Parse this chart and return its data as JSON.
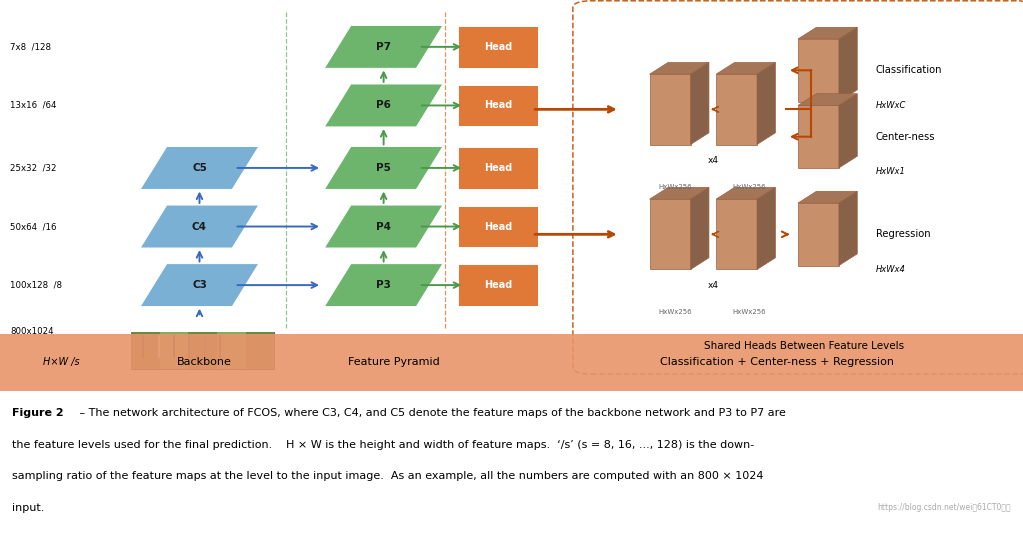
{
  "fig_width": 10.23,
  "fig_height": 5.35,
  "bg_color": "#ffffff",
  "bottom_bar_color": "#e8956a",
  "blue_para_color": "#7ab0d4",
  "green_para_color": "#6db56d",
  "head_box_color": "#e07838",
  "tan_color": "#c8906a",
  "arrow_orange": "#b84800",
  "arrow_blue": "#3a6abf",
  "arrow_green": "#4a9a4a",
  "dashed_line_color": "#80b880",
  "dashed_line_color2": "#e08040",
  "right_box_color": "#c8906a",
  "right_box_edge": "#9a6040",
  "right_panel_edge": "#c86020",
  "bottom_label0": "H×W /s",
  "bottom_label1": "Backbone",
  "bottom_label2": "Feature Pyramid",
  "bottom_label3": "Classification + Center-ness + Regression",
  "shared_text": "Shared Heads Between Feature Levels",
  "caption_bold": "Figure 2",
  "caption_rest": " – The network architecture of FCOS, where C3, C4, and C5 denote the feature maps of the backbone network and P3 to P7 are",
  "caption_line2": "the feature levels used for the final prediction.     H × W is the height and width of feature maps.  ‘/s’ (s = 8, 16, ..., 128) is the down-",
  "caption_line3": "sampling ratio of the feature maps at the level to the input image.  As an example, all the numbers are computed with an 800 × 1024",
  "caption_line4": "input.",
  "watermark": "https://blog.csdn.net/wei两61CT0博客"
}
